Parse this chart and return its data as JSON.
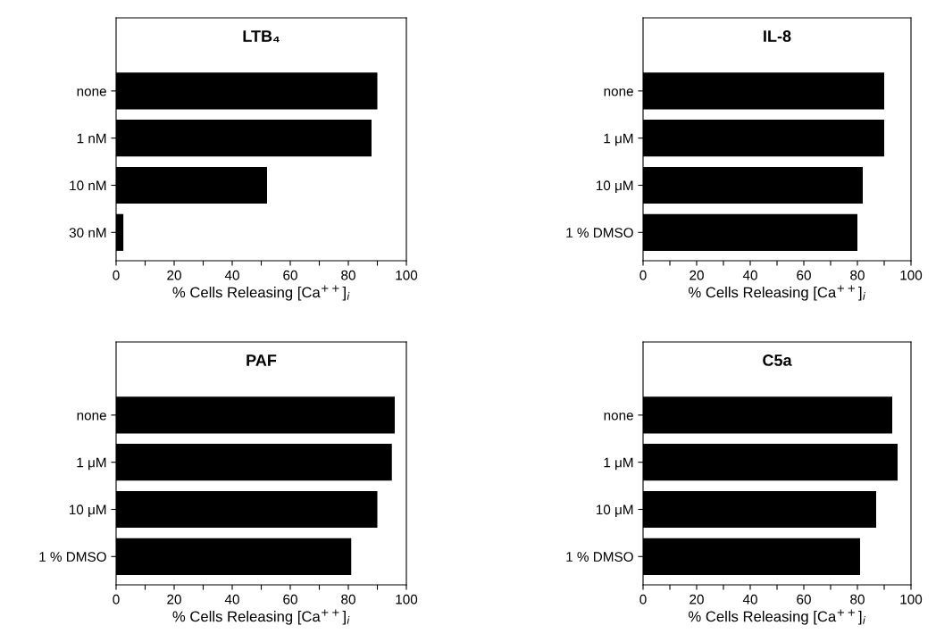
{
  "chart_data": [
    {
      "type": "bar",
      "orientation": "horizontal",
      "title": "LTB₄",
      "xlabel": "% Cells Releasing [Ca$^{++}$]$_{i}$",
      "categories": [
        "none",
        "1 nM",
        "10 nM",
        "30 nM"
      ],
      "values": [
        90,
        88,
        52,
        2.5
      ],
      "color": "#000000",
      "xlim": [
        0,
        100
      ],
      "xticks": [
        0,
        {
          "value": 10,
          "label": null
        },
        20,
        {
          "value": 30,
          "label": null
        },
        40,
        {
          "value": 50,
          "label": null
        },
        60,
        {
          "value": 70,
          "label": null
        },
        80,
        {
          "value": 90,
          "label": null
        },
        100
      ],
      "grid": false
    },
    {
      "type": "bar",
      "orientation": "horizontal",
      "title": "IL-8",
      "xlabel": "% Cells Releasing [Ca$^{++}$]$_{i}$",
      "categories": [
        "none",
        "1 μM",
        "10 μM",
        "1 % DMSO"
      ],
      "values": [
        90,
        90,
        82,
        80
      ],
      "color": "#000000",
      "xlim": [
        0,
        100
      ],
      "xticks": [
        0,
        {
          "value": 10,
          "label": null
        },
        20,
        {
          "value": 30,
          "label": null
        },
        40,
        {
          "value": 50,
          "label": null
        },
        60,
        {
          "value": 70,
          "label": null
        },
        80,
        {
          "value": 90,
          "label": null
        },
        100
      ],
      "grid": false
    },
    {
      "type": "bar",
      "orientation": "horizontal",
      "title": "PAF",
      "xlabel": "% Cells Releasing [Ca$^{++}$]$_{i}$",
      "categories": [
        "none",
        "1 μM",
        "10 μM",
        "1 % DMSO"
      ],
      "values": [
        96,
        95,
        90,
        81
      ],
      "color": "#000000",
      "xlim": [
        0,
        100
      ],
      "xticks": [
        0,
        {
          "value": 10,
          "label": null
        },
        20,
        {
          "value": 30,
          "label": null
        },
        40,
        {
          "value": 50,
          "label": null
        },
        60,
        {
          "value": 70,
          "label": null
        },
        80,
        {
          "value": 90,
          "label": null
        },
        100
      ],
      "grid": false
    },
    {
      "type": "bar",
      "orientation": "horizontal",
      "title": "C5a",
      "xlabel": "% Cells Releasing [Ca$^{++}$]$_{i}$",
      "categories": [
        "none",
        "1 μM",
        "10 μM",
        "1 % DMSO"
      ],
      "values": [
        93,
        95,
        87,
        81
      ],
      "color": "#000000",
      "xlim": [
        0,
        100
      ],
      "xticks": [
        0,
        {
          "value": 10,
          "label": null
        },
        20,
        {
          "value": 30,
          "label": null
        },
        40,
        {
          "value": 50,
          "label": null
        },
        60,
        {
          "value": 70,
          "label": null
        },
        80,
        {
          "value": 90,
          "label": null
        },
        100
      ],
      "grid": false
    }
  ]
}
